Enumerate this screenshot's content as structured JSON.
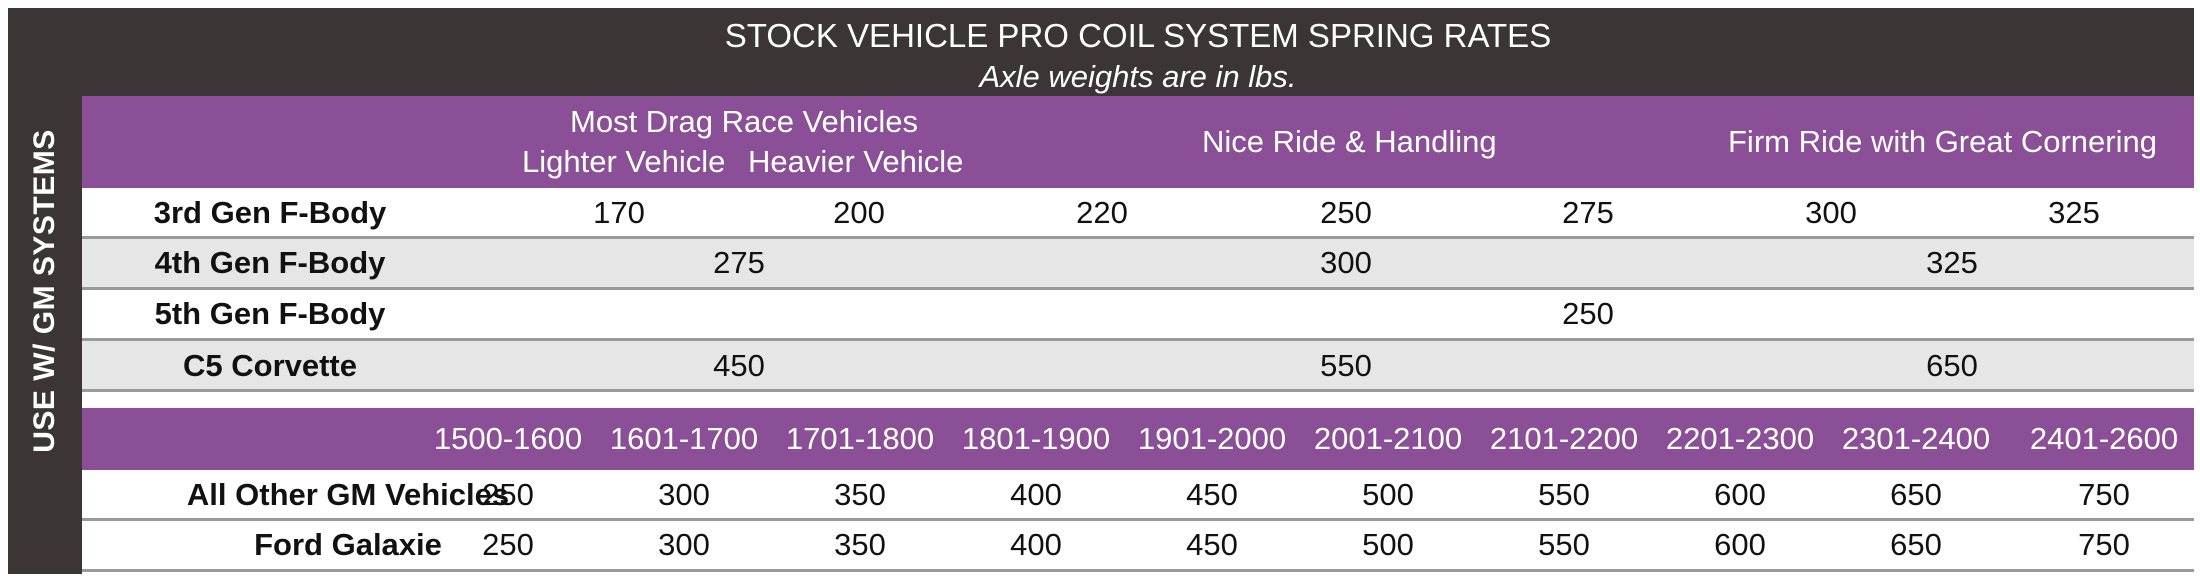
{
  "sidebar_label": "USE W/ GM SYSTEMS",
  "header": {
    "title": "STOCK VEHICLE PRO COIL SYSTEM SPRING RATES",
    "subtitle": "Axle weights are in lbs."
  },
  "categories": {
    "most_drag": "Most Drag Race Vehicles",
    "lighter": "Lighter Vehicle",
    "heavier": "Heavier Vehicle",
    "nice_ride": "Nice Ride & Handling",
    "firm_ride": "Firm Ride with Great Cornering"
  },
  "gm_rows": [
    {
      "label": "3rd Gen F-Body",
      "values": [
        "170",
        "200",
        "220",
        "250",
        "275",
        "300",
        "325"
      ]
    },
    {
      "label": "4th Gen F-Body",
      "values": [
        "275",
        "300",
        "325"
      ]
    },
    {
      "label": "5th Gen F-Body",
      "values": [
        "250"
      ]
    },
    {
      "label": "C5 Corvette",
      "values": [
        "450",
        "550",
        "650"
      ]
    }
  ],
  "weight_ranges": [
    "1500-1600",
    "1601-1700",
    "1701-1800",
    "1801-1900",
    "1901-2000",
    "2001-2100",
    "2101-2200",
    "2201-2300",
    "2301-2400",
    "2401-2600"
  ],
  "other_rows": [
    {
      "label": "All Other GM Vehicles",
      "values": [
        "250",
        "300",
        "350",
        "400",
        "450",
        "500",
        "550",
        "600",
        "650",
        "750"
      ]
    },
    {
      "label": "Ford Galaxie",
      "values": [
        "250",
        "300",
        "350",
        "400",
        "450",
        "500",
        "550",
        "600",
        "650",
        "750"
      ]
    }
  ]
}
